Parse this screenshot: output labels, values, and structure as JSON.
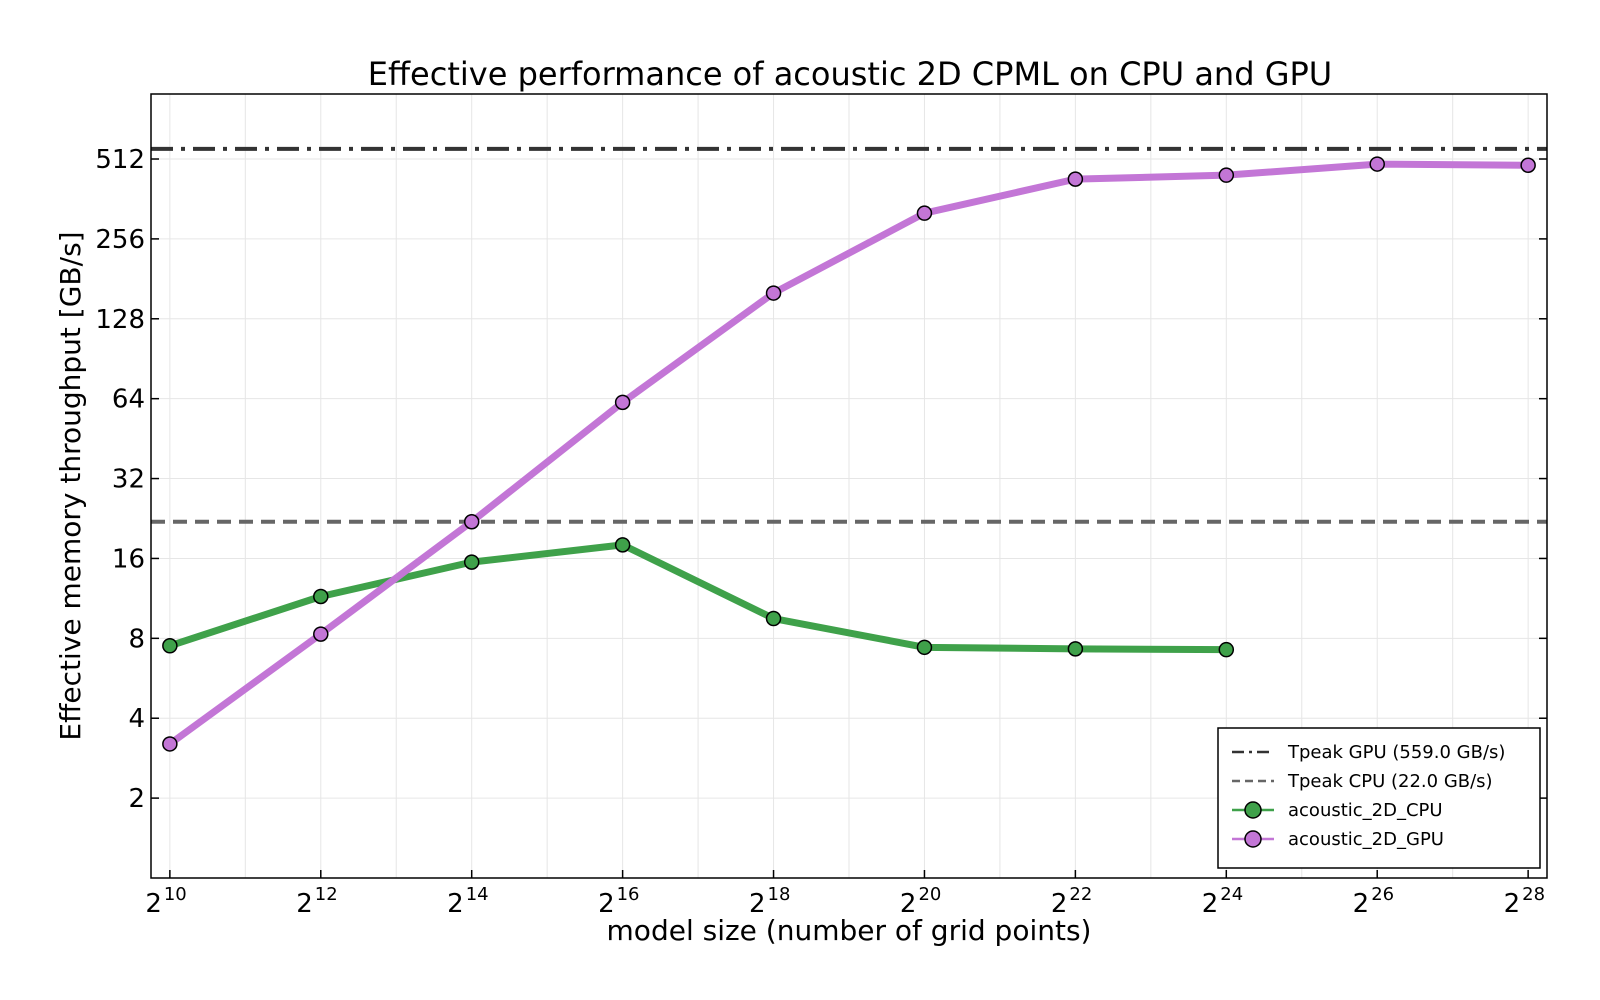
{
  "chart_data": {
    "type": "line",
    "title": "Effective performance of acoustic 2D CPML on CPU and GPU",
    "xlabel": "model size (number of grid points)",
    "ylabel": "Effective memory throughput [GB/s]",
    "xscale": "log2",
    "yscale": "log2",
    "xlim_exp": [
      9.75,
      28.25
    ],
    "ylim": [
      1.0,
      900
    ],
    "grid": true,
    "legend_position": "bottom-right",
    "x_ticks": [
      {
        "base": "2",
        "exp": "10",
        "value": 10
      },
      {
        "base": "2",
        "exp": "12",
        "value": 12
      },
      {
        "base": "2",
        "exp": "14",
        "value": 14
      },
      {
        "base": "2",
        "exp": "16",
        "value": 16
      },
      {
        "base": "2",
        "exp": "18",
        "value": 18
      },
      {
        "base": "2",
        "exp": "20",
        "value": 20
      },
      {
        "base": "2",
        "exp": "22",
        "value": 22
      },
      {
        "base": "2",
        "exp": "24",
        "value": 24
      },
      {
        "base": "2",
        "exp": "26",
        "value": 26
      },
      {
        "base": "2",
        "exp": "28",
        "value": 28
      }
    ],
    "y_ticks": [
      "2",
      "4",
      "8",
      "16",
      "32",
      "64",
      "128",
      "256",
      "512"
    ],
    "reference_lines": [
      {
        "name": "Tpeak GPU (559.0 GB/s)",
        "value": 559.0,
        "style": "dashdot",
        "color": "#333333"
      },
      {
        "name": "Tpeak CPU (22.0 GB/s)",
        "value": 22.0,
        "style": "dashed",
        "color": "#666666"
      }
    ],
    "series": [
      {
        "name": "acoustic_2D_CPU",
        "color": "#3fa14a",
        "x_exp": [
          10,
          12,
          14,
          16,
          18,
          20,
          22,
          24
        ],
        "values": [
          7.5,
          11.5,
          15.5,
          18.0,
          9.5,
          7.4,
          7.3,
          7.25
        ]
      },
      {
        "name": "acoustic_2D_GPU",
        "color": "#c376d6",
        "x_exp": [
          10,
          12,
          14,
          16,
          18,
          20,
          22,
          24,
          26,
          28
        ],
        "values": [
          3.2,
          8.3,
          22.0,
          62.0,
          160.0,
          320.0,
          430.0,
          445.0,
          490.0,
          485.0
        ]
      }
    ]
  }
}
